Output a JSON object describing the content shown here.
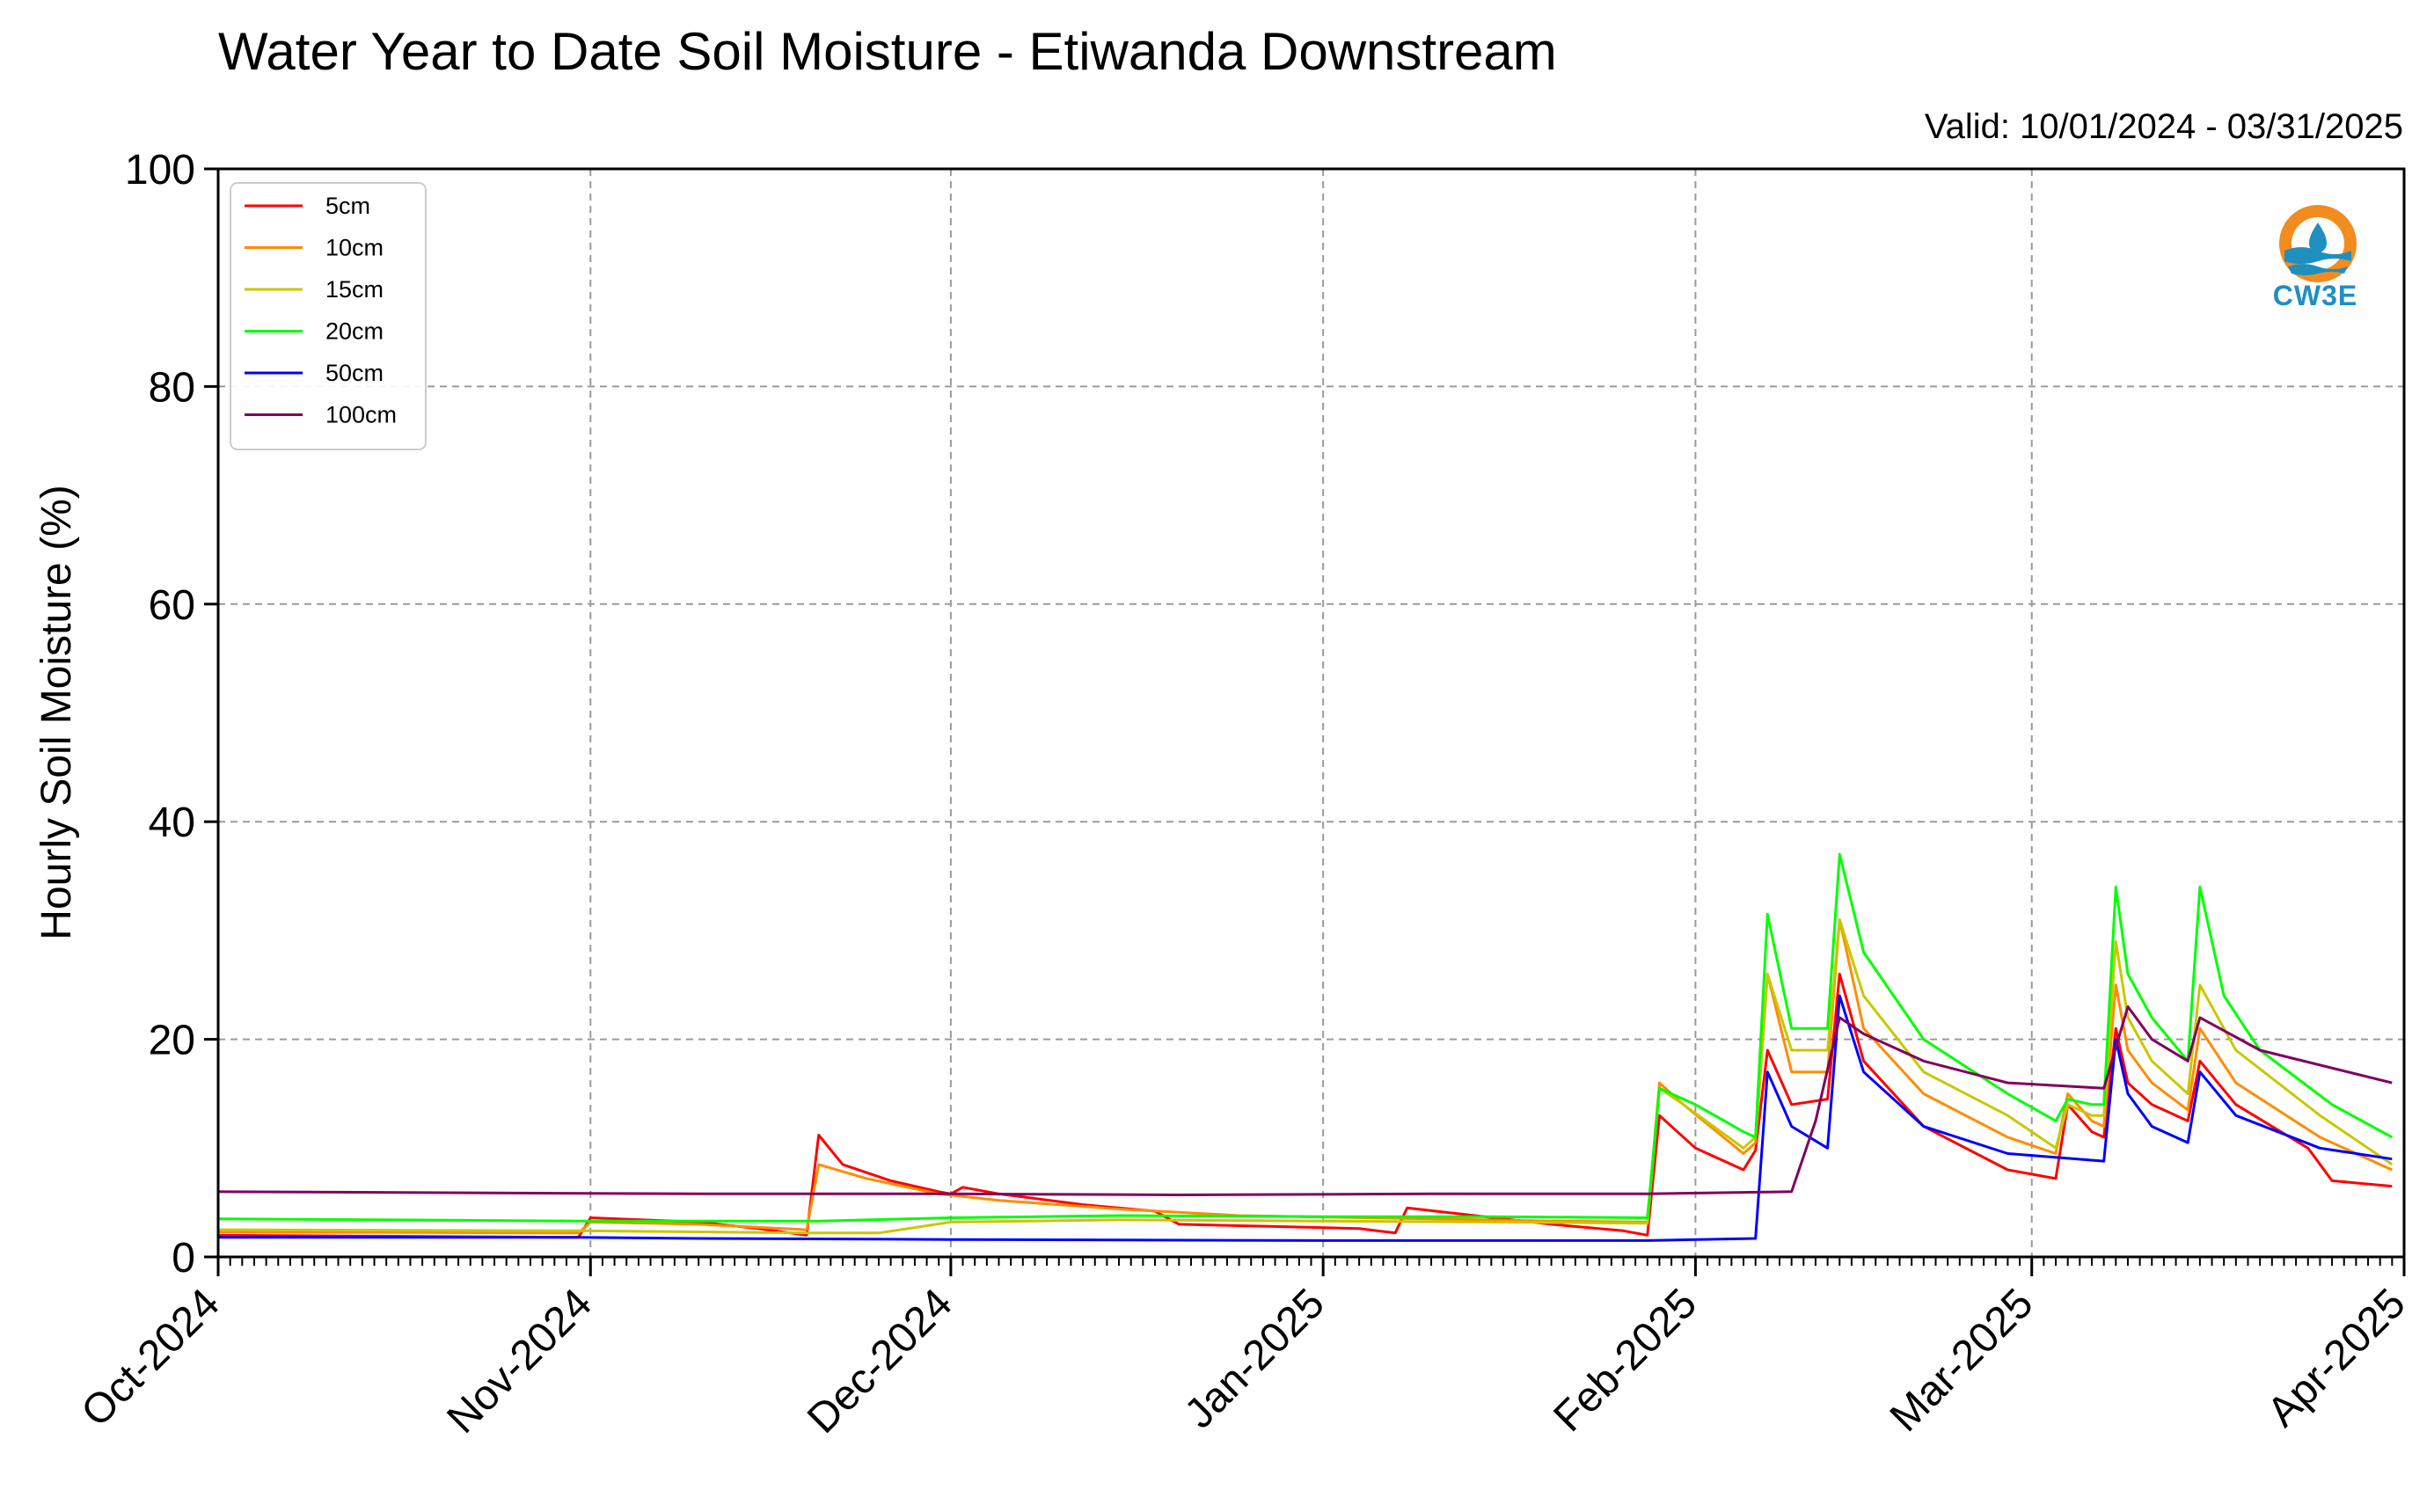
{
  "title": "Water Year to Date Soil Moisture - Etiwanda Downstream",
  "valid": "Valid: 10/01/2024 - 03/31/2025",
  "logo": {
    "text": "CW3E",
    "colors": {
      "orange": "#f28c1e",
      "blue": "#1f8fc0"
    }
  },
  "chart_data": {
    "type": "line",
    "title": "Water Year to Date Soil Moisture - Etiwanda Downstream",
    "ylabel": "Hourly Soil Moisture (%)",
    "xlabel": "",
    "x_start": "2024-10-01",
    "x_end": "2025-04-01",
    "ylim": [
      0,
      100
    ],
    "yticks": [
      0,
      20,
      40,
      60,
      80,
      100
    ],
    "xticks": [
      {
        "date": "2024-10-01",
        "label": "Oct-2024"
      },
      {
        "date": "2024-11-01",
        "label": "Nov-2024"
      },
      {
        "date": "2024-12-01",
        "label": "Dec-2024"
      },
      {
        "date": "2025-01-01",
        "label": "Jan-2025"
      },
      {
        "date": "2025-02-01",
        "label": "Feb-2025"
      },
      {
        "date": "2025-03-01",
        "label": "Mar-2025"
      },
      {
        "date": "2025-04-01",
        "label": "Apr-2025"
      }
    ],
    "grid": true,
    "legend_position": "top-left",
    "series": [
      {
        "name": "5cm",
        "color": "#ff0000",
        "points": [
          [
            "2024-10-01",
            2.0
          ],
          [
            "2024-10-31",
            1.8
          ],
          [
            "2024-11-01",
            3.6
          ],
          [
            "2024-11-10",
            3.2
          ],
          [
            "2024-11-15",
            2.6
          ],
          [
            "2024-11-19",
            2.0
          ],
          [
            "2024-11-20",
            11.2
          ],
          [
            "2024-11-22",
            8.5
          ],
          [
            "2024-11-26",
            7.0
          ],
          [
            "2024-11-30",
            6.0
          ],
          [
            "2024-12-01",
            5.8
          ],
          [
            "2024-12-02",
            6.4
          ],
          [
            "2024-12-05",
            5.8
          ],
          [
            "2024-12-12",
            4.8
          ],
          [
            "2024-12-18",
            4.2
          ],
          [
            "2024-12-20",
            3.0
          ],
          [
            "2024-12-28",
            2.8
          ],
          [
            "2025-01-04",
            2.6
          ],
          [
            "2025-01-07",
            2.2
          ],
          [
            "2025-01-08",
            4.5
          ],
          [
            "2025-01-12",
            4.0
          ],
          [
            "2025-01-20",
            3.0
          ],
          [
            "2025-01-26",
            2.4
          ],
          [
            "2025-01-28",
            2.0
          ],
          [
            "2025-01-29",
            13.0
          ],
          [
            "2025-02-01",
            10.0
          ],
          [
            "2025-02-05",
            8.0
          ],
          [
            "2025-02-06",
            9.8
          ],
          [
            "2025-02-07",
            19.0
          ],
          [
            "2025-02-09",
            14.0
          ],
          [
            "2025-02-12",
            14.5
          ],
          [
            "2025-02-13",
            26.0
          ],
          [
            "2025-02-15",
            18.0
          ],
          [
            "2025-02-20",
            12.0
          ],
          [
            "2025-02-27",
            8.0
          ],
          [
            "2025-03-03",
            7.2
          ],
          [
            "2025-03-04",
            14.0
          ],
          [
            "2025-03-06",
            11.5
          ],
          [
            "2025-03-07",
            11.0
          ],
          [
            "2025-03-08",
            21.0
          ],
          [
            "2025-03-09",
            16.0
          ],
          [
            "2025-03-11",
            14.0
          ],
          [
            "2025-03-14",
            12.5
          ],
          [
            "2025-03-15",
            18.0
          ],
          [
            "2025-03-18",
            14.0
          ],
          [
            "2025-03-24",
            10.0
          ],
          [
            "2025-03-26",
            7.0
          ],
          [
            "2025-03-31",
            6.5
          ]
        ]
      },
      {
        "name": "10cm",
        "color": "#ff8c00",
        "points": [
          [
            "2024-10-01",
            2.3
          ],
          [
            "2024-10-31",
            2.2
          ],
          [
            "2024-11-01",
            3.2
          ],
          [
            "2024-11-10",
            3.0
          ],
          [
            "2024-11-19",
            2.5
          ],
          [
            "2024-11-20",
            8.5
          ],
          [
            "2024-11-24",
            7.2
          ],
          [
            "2024-11-30",
            5.8
          ],
          [
            "2024-12-05",
            5.2
          ],
          [
            "2024-12-15",
            4.4
          ],
          [
            "2024-12-25",
            3.8
          ],
          [
            "2025-01-10",
            3.5
          ],
          [
            "2025-01-20",
            3.3
          ],
          [
            "2025-01-28",
            3.2
          ],
          [
            "2025-01-29",
            16.0
          ],
          [
            "2025-01-31",
            14.0
          ],
          [
            "2025-02-05",
            9.5
          ],
          [
            "2025-02-06",
            10.5
          ],
          [
            "2025-02-07",
            26.0
          ],
          [
            "2025-02-09",
            17.0
          ],
          [
            "2025-02-12",
            17.0
          ],
          [
            "2025-02-13",
            31.0
          ],
          [
            "2025-02-15",
            21.0
          ],
          [
            "2025-02-20",
            15.0
          ],
          [
            "2025-02-27",
            11.0
          ],
          [
            "2025-03-03",
            9.5
          ],
          [
            "2025-03-04",
            15.0
          ],
          [
            "2025-03-06",
            12.5
          ],
          [
            "2025-03-07",
            12.0
          ],
          [
            "2025-03-08",
            25.0
          ],
          [
            "2025-03-09",
            19.0
          ],
          [
            "2025-03-11",
            16.0
          ],
          [
            "2025-03-14",
            13.5
          ],
          [
            "2025-03-15",
            21.0
          ],
          [
            "2025-03-18",
            16.0
          ],
          [
            "2025-03-25",
            11.0
          ],
          [
            "2025-03-31",
            8.0
          ]
        ]
      },
      {
        "name": "15cm",
        "color": "#c8c800",
        "points": [
          [
            "2024-10-01",
            2.5
          ],
          [
            "2024-10-31",
            2.4
          ],
          [
            "2024-11-10",
            2.3
          ],
          [
            "2024-11-19",
            2.2
          ],
          [
            "2024-11-25",
            2.2
          ],
          [
            "2024-12-01",
            3.2
          ],
          [
            "2024-12-15",
            3.4
          ],
          [
            "2025-01-01",
            3.3
          ],
          [
            "2025-01-15",
            3.2
          ],
          [
            "2025-01-28",
            3.1
          ],
          [
            "2025-01-29",
            15.5
          ],
          [
            "2025-01-31",
            14.0
          ],
          [
            "2025-02-05",
            10.0
          ],
          [
            "2025-02-06",
            11.0
          ],
          [
            "2025-02-07",
            26.0
          ],
          [
            "2025-02-09",
            19.0
          ],
          [
            "2025-02-12",
            19.0
          ],
          [
            "2025-02-13",
            31.0
          ],
          [
            "2025-02-15",
            24.0
          ],
          [
            "2025-02-20",
            17.0
          ],
          [
            "2025-02-27",
            13.0
          ],
          [
            "2025-03-03",
            10.0
          ],
          [
            "2025-03-04",
            14.0
          ],
          [
            "2025-03-06",
            13.0
          ],
          [
            "2025-03-07",
            13.0
          ],
          [
            "2025-03-08",
            29.0
          ],
          [
            "2025-03-09",
            22.0
          ],
          [
            "2025-03-11",
            18.0
          ],
          [
            "2025-03-14",
            15.0
          ],
          [
            "2025-03-15",
            25.0
          ],
          [
            "2025-03-18",
            19.0
          ],
          [
            "2025-03-25",
            13.0
          ],
          [
            "2025-03-31",
            8.5
          ]
        ]
      },
      {
        "name": "20cm",
        "color": "#00ff00",
        "points": [
          [
            "2024-10-01",
            3.5
          ],
          [
            "2024-10-31",
            3.3
          ],
          [
            "2024-11-10",
            3.3
          ],
          [
            "2024-11-20",
            3.3
          ],
          [
            "2024-12-01",
            3.6
          ],
          [
            "2024-12-15",
            3.8
          ],
          [
            "2025-01-01",
            3.7
          ],
          [
            "2025-01-15",
            3.7
          ],
          [
            "2025-01-28",
            3.6
          ],
          [
            "2025-01-29",
            15.5
          ],
          [
            "2025-02-01",
            14.0
          ],
          [
            "2025-02-05",
            11.5
          ],
          [
            "2025-02-06",
            11.0
          ],
          [
            "2025-02-07",
            31.5
          ],
          [
            "2025-02-09",
            21.0
          ],
          [
            "2025-02-12",
            21.0
          ],
          [
            "2025-02-13",
            37.0
          ],
          [
            "2025-02-15",
            28.0
          ],
          [
            "2025-02-20",
            20.0
          ],
          [
            "2025-02-27",
            15.0
          ],
          [
            "2025-03-03",
            12.5
          ],
          [
            "2025-03-04",
            14.5
          ],
          [
            "2025-03-06",
            14.0
          ],
          [
            "2025-03-07",
            14.0
          ],
          [
            "2025-03-08",
            34.0
          ],
          [
            "2025-03-09",
            26.0
          ],
          [
            "2025-03-11",
            22.0
          ],
          [
            "2025-03-14",
            18.0
          ],
          [
            "2025-03-15",
            34.0
          ],
          [
            "2025-03-17",
            24.0
          ],
          [
            "2025-03-20",
            19.0
          ],
          [
            "2025-03-26",
            14.0
          ],
          [
            "2025-03-31",
            11.0
          ]
        ]
      },
      {
        "name": "50cm",
        "color": "#0000ff",
        "points": [
          [
            "2024-10-01",
            1.8
          ],
          [
            "2024-10-31",
            1.8
          ],
          [
            "2024-11-10",
            1.7
          ],
          [
            "2024-12-01",
            1.6
          ],
          [
            "2025-01-01",
            1.5
          ],
          [
            "2025-01-28",
            1.5
          ],
          [
            "2025-02-06",
            1.7
          ],
          [
            "2025-02-07",
            17.0
          ],
          [
            "2025-02-09",
            12.0
          ],
          [
            "2025-02-12",
            10.0
          ],
          [
            "2025-02-13",
            24.0
          ],
          [
            "2025-02-15",
            17.0
          ],
          [
            "2025-02-20",
            12.0
          ],
          [
            "2025-02-27",
            9.5
          ],
          [
            "2025-03-07",
            8.8
          ],
          [
            "2025-03-08",
            20.0
          ],
          [
            "2025-03-09",
            15.0
          ],
          [
            "2025-03-11",
            12.0
          ],
          [
            "2025-03-14",
            10.5
          ],
          [
            "2025-03-15",
            17.0
          ],
          [
            "2025-03-18",
            13.0
          ],
          [
            "2025-03-25",
            10.0
          ],
          [
            "2025-03-31",
            9.0
          ]
        ]
      },
      {
        "name": "100cm",
        "color": "#800060",
        "points": [
          [
            "2024-10-01",
            6.0
          ],
          [
            "2024-10-20",
            5.9
          ],
          [
            "2024-11-10",
            5.8
          ],
          [
            "2024-12-01",
            5.8
          ],
          [
            "2024-12-20",
            5.7
          ],
          [
            "2025-01-10",
            5.8
          ],
          [
            "2025-01-28",
            5.8
          ],
          [
            "2025-02-09",
            6.0
          ],
          [
            "2025-02-11",
            12.5
          ],
          [
            "2025-02-13",
            22.0
          ],
          [
            "2025-02-15",
            20.5
          ],
          [
            "2025-02-20",
            18.0
          ],
          [
            "2025-02-27",
            16.0
          ],
          [
            "2025-03-07",
            15.5
          ],
          [
            "2025-03-09",
            23.0
          ],
          [
            "2025-03-11",
            20.0
          ],
          [
            "2025-03-14",
            18.0
          ],
          [
            "2025-03-15",
            22.0
          ],
          [
            "2025-03-20",
            19.0
          ],
          [
            "2025-03-31",
            16.0
          ]
        ]
      }
    ]
  }
}
